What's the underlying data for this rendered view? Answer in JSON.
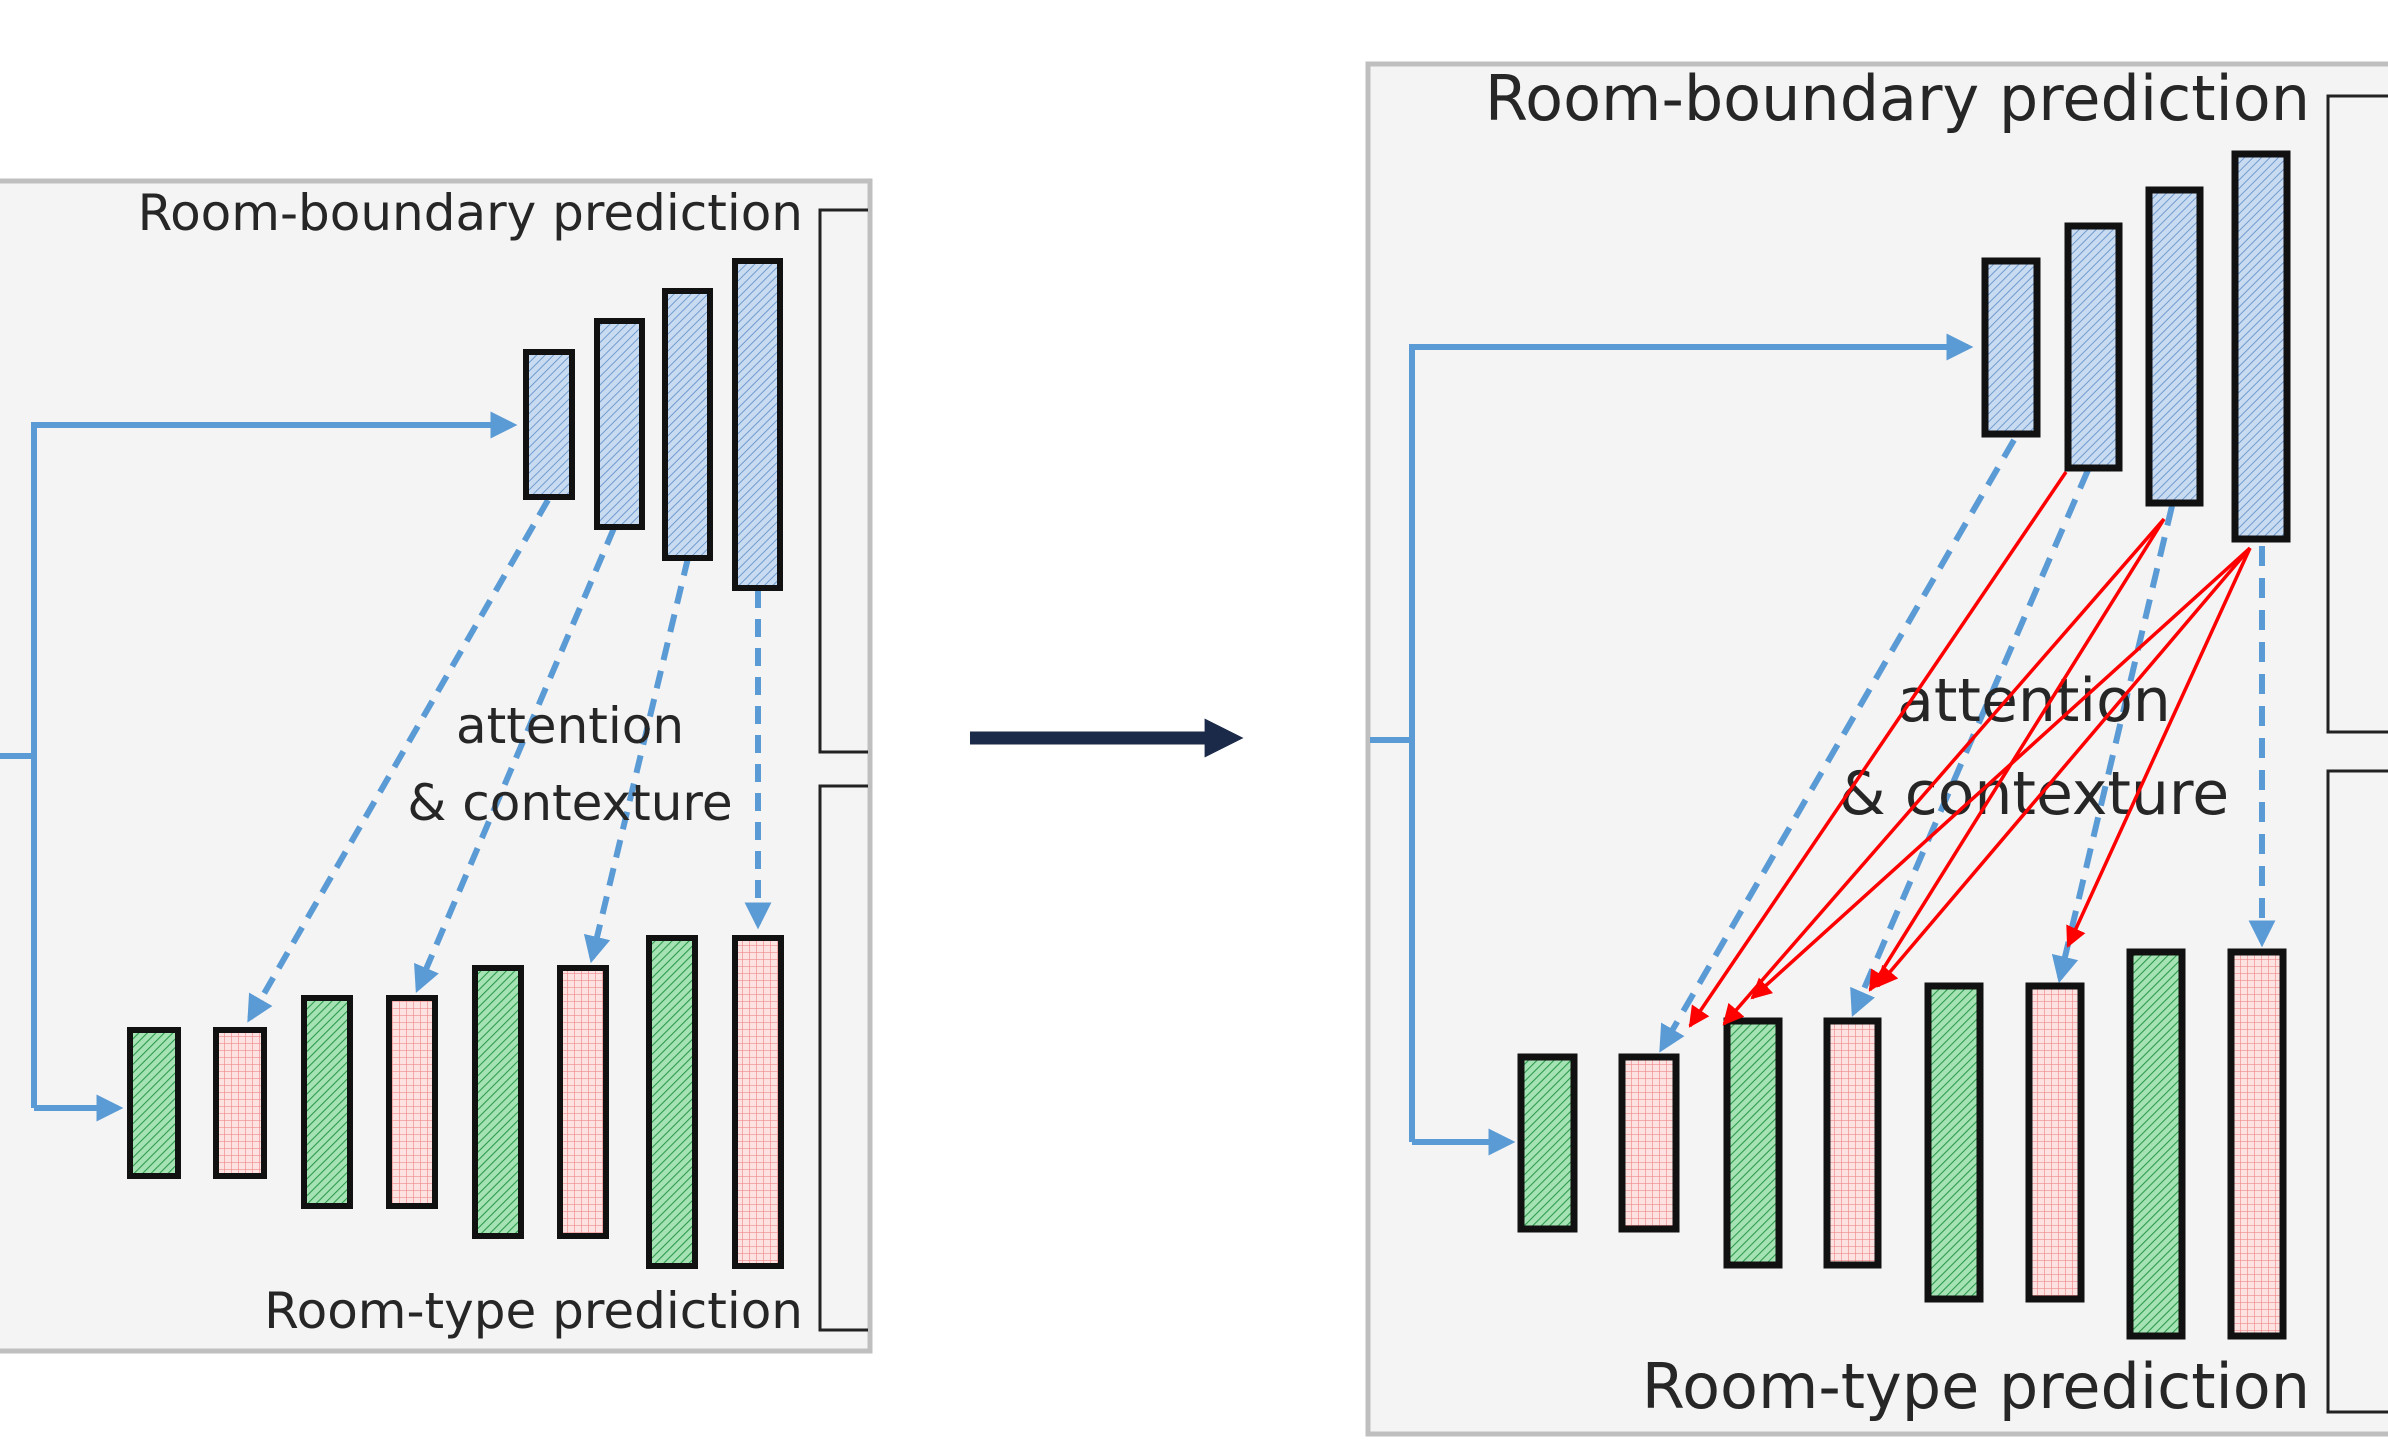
{
  "left_panel": {
    "top_label": "Room-boundary prediction",
    "bottom_label": "Room-type prediction",
    "middle_label_line1": "attention",
    "middle_label_line2": "& contexture"
  },
  "right_panel": {
    "top_label": "Room-boundary prediction",
    "bottom_label": "Room-type prediction",
    "middle_label_line1": "attention",
    "middle_label_line2": "& contexture"
  },
  "colors": {
    "panel_bg": "#f4f4f4",
    "panel_border": "#bfbfbf",
    "blue_arrow": "#5b9bd5",
    "blue_block": "#b4cbe8",
    "green_block": "#7fcf94",
    "pink_block": "#f6c0c0",
    "red_arrow": "#ff0000",
    "transition_arrow": "#1c2a4a"
  },
  "icons": {
    "transition": "right-arrow-icon"
  }
}
